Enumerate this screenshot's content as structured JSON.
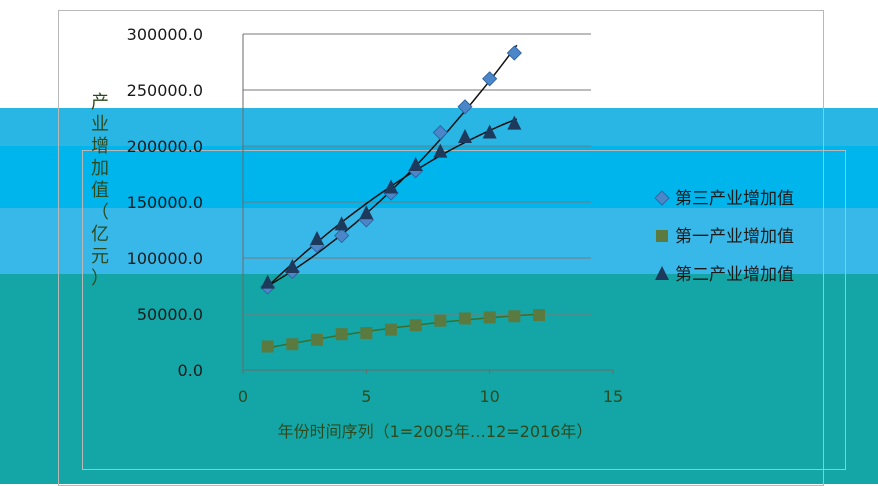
{
  "chart_data": {
    "type": "scatter",
    "ylabel": "产业增加值（亿元）",
    "xlabel": "年份时间序列（1=2005年…12=2016年）",
    "xlim": [
      0,
      15
    ],
    "ylim": [
      0,
      300000
    ],
    "x_ticks": [
      "0",
      "5",
      "10",
      "15"
    ],
    "y_ticks": [
      "0.0",
      "50000.0",
      "100000.0",
      "150000.0",
      "200000.0",
      "250000.0",
      "300000.0"
    ],
    "grid": true,
    "legend_position": "right",
    "series": [
      {
        "name": "第三产业增加值",
        "marker": "diamond",
        "color": "#4a86c8",
        "x": [
          1,
          2,
          3,
          4,
          5,
          6,
          7,
          8,
          9,
          10,
          11
        ],
        "y": [
          74000,
          88000,
          111000,
          120000,
          134000,
          158000,
          178000,
          212000,
          235000,
          260000,
          283000
        ]
      },
      {
        "name": "第一产业增加值",
        "marker": "square",
        "color": "#5a7a40",
        "x": [
          1,
          2,
          3,
          4,
          5,
          6,
          7,
          8,
          9,
          10,
          11,
          12
        ],
        "y": [
          21000,
          23000,
          27000,
          32000,
          33000,
          36000,
          40000,
          44000,
          46000,
          47000,
          48000,
          49000
        ]
      },
      {
        "name": "第二产业增加值",
        "marker": "triangle",
        "color": "#1d3a5c",
        "x": [
          1,
          2,
          3,
          4,
          5,
          6,
          7,
          8,
          9,
          10,
          11
        ],
        "y": [
          78000,
          92000,
          117000,
          130000,
          140000,
          163000,
          183000,
          195000,
          208000,
          212000,
          220000
        ]
      }
    ]
  }
}
